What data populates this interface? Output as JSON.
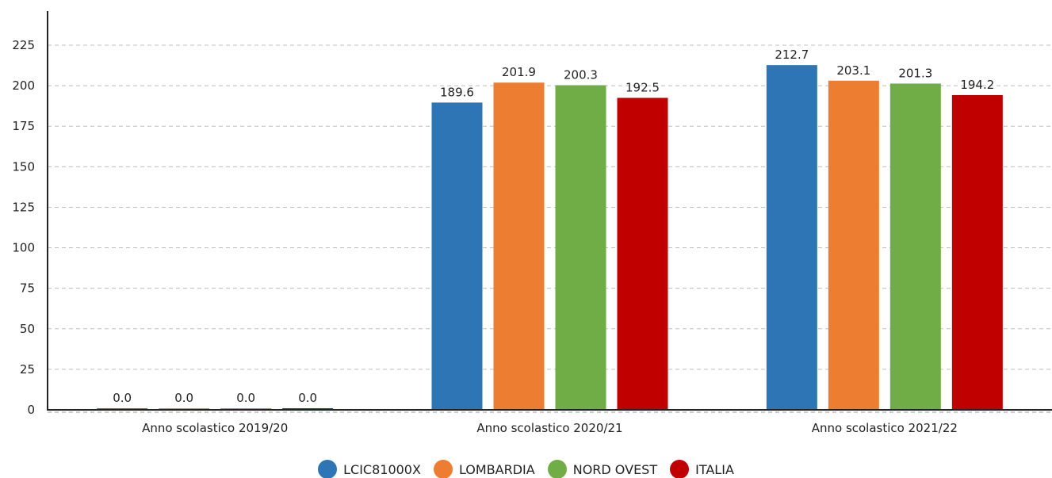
{
  "chart_data": {
    "type": "bar",
    "categories": [
      "Anno scolastico 2019/20",
      "Anno scolastico 2020/21",
      "Anno scolastico 2021/22"
    ],
    "series": [
      {
        "name": "LCIC81000X",
        "color": "#2e75b6",
        "values": [
          0.0,
          189.6,
          212.7
        ],
        "labels": [
          "0.0",
          "189.6",
          "212.7"
        ]
      },
      {
        "name": "LOMBARDIA",
        "color": "#ed7d31",
        "values": [
          0.0,
          201.9,
          203.1
        ],
        "labels": [
          "0.0",
          "201.9",
          "203.1"
        ]
      },
      {
        "name": "NORD OVEST",
        "color": "#70ad47",
        "values": [
          0.0,
          200.3,
          201.3
        ],
        "labels": [
          "0.0",
          "200.3",
          "201.3"
        ]
      },
      {
        "name": "ITALIA",
        "color": "#c00000",
        "values": [
          0.0,
          192.5,
          194.2
        ],
        "labels": [
          "0.0",
          "192.5",
          "194.2"
        ]
      }
    ],
    "y_ticks": [
      "0",
      "25",
      "50",
      "75",
      "100",
      "125",
      "150",
      "175",
      "200",
      "225"
    ],
    "ylim": [
      0,
      250
    ],
    "grid": true,
    "legend_position": "bottom"
  }
}
